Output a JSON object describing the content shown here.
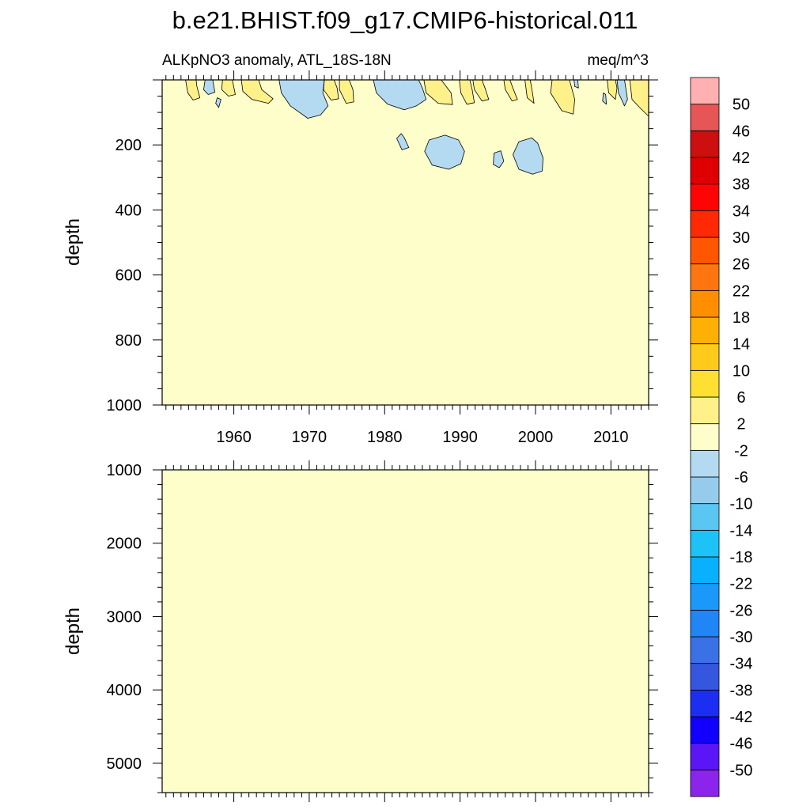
{
  "chart_data": {
    "type": "heatmap",
    "title": "b.e21.BHIST.f09_g17.CMIP6-historical.011",
    "subtitle_left": "ALKpNO3 anomaly, ATL_18S-18N",
    "subtitle_right": "meq/m^3",
    "panels": [
      {
        "id": "upper",
        "ylabel": "depth",
        "ylim": [
          0,
          1000
        ],
        "yticks": [
          "200",
          "400",
          "600",
          "800",
          "1000"
        ],
        "xlim": [
          1950.5,
          2015
        ],
        "xticks": [
          "1960",
          "1970",
          "1980",
          "1990",
          "2000",
          "2010"
        ],
        "background_level": "-2 to 2",
        "positive_regions": [
          {
            "label": "2 to 6",
            "points": [
              [
                1953.6,
                0
              ],
              [
                1953.9,
                40
              ],
              [
                1954.6,
                62
              ],
              [
                1955.5,
                55
              ],
              [
                1955.1,
                20
              ],
              [
                1955.0,
                0
              ]
            ]
          },
          {
            "label": "2 to 6",
            "points": [
              [
                1958.5,
                0
              ],
              [
                1958.4,
                30
              ],
              [
                1959.3,
                50
              ],
              [
                1960.2,
                45
              ],
              [
                1959.8,
                0
              ]
            ]
          },
          {
            "label": "2 to 6",
            "points": [
              [
                1961.0,
                0
              ],
              [
                1961.2,
                35
              ],
              [
                1962.4,
                60
              ],
              [
                1964.6,
                72
              ],
              [
                1965.2,
                58
              ],
              [
                1963.7,
                30
              ],
              [
                1963.3,
                0
              ]
            ]
          },
          {
            "label": "2 to 6",
            "points": [
              [
                1966.2,
                0
              ],
              [
                1966.3,
                35
              ],
              [
                1967.4,
                62
              ],
              [
                1968.6,
                58
              ],
              [
                1968.2,
                25
              ],
              [
                1967.7,
                0
              ]
            ]
          },
          {
            "label": "2 to 6",
            "points": [
              [
                1972.0,
                0
              ],
              [
                1971.9,
                30
              ],
              [
                1972.9,
                62
              ],
              [
                1973.9,
                58
              ],
              [
                1973.7,
                25
              ],
              [
                1973.3,
                0
              ]
            ]
          },
          {
            "label": "2 to 6",
            "points": [
              [
                1974.0,
                0
              ],
              [
                1974.0,
                30
              ],
              [
                1974.9,
                72
              ],
              [
                1975.9,
                68
              ],
              [
                1975.8,
                30
              ],
              [
                1975.3,
                0
              ]
            ]
          },
          {
            "label": "2 to 6",
            "points": [
              [
                1985.2,
                0
              ],
              [
                1985.5,
                40
              ],
              [
                1987.1,
                72
              ],
              [
                1989.0,
                76
              ],
              [
                1988.8,
                40
              ],
              [
                1987.5,
                0
              ]
            ]
          },
          {
            "label": "2 to 6",
            "points": [
              [
                1989.9,
                0
              ],
              [
                1990.1,
                40
              ],
              [
                1990.9,
                75
              ],
              [
                1991.9,
                70
              ],
              [
                1991.6,
                30
              ],
              [
                1991.3,
                0
              ]
            ]
          },
          {
            "label": "2 to 6",
            "points": [
              [
                1991.7,
                0
              ],
              [
                1991.9,
                30
              ],
              [
                1992.9,
                65
              ],
              [
                1993.8,
                60
              ],
              [
                1993.3,
                25
              ],
              [
                1992.9,
                0
              ]
            ]
          },
          {
            "label": "2 to 6",
            "points": [
              [
                1995.8,
                0
              ],
              [
                1996.0,
                30
              ],
              [
                1996.9,
                65
              ],
              [
                1997.6,
                60
              ],
              [
                1997.0,
                25
              ],
              [
                1996.6,
                0
              ]
            ]
          },
          {
            "label": "2 to 6",
            "points": [
              [
                1998.6,
                0
              ],
              [
                1998.9,
                55
              ],
              [
                1999.8,
                72
              ],
              [
                1999.6,
                40
              ],
              [
                1999.3,
                0
              ]
            ]
          },
          {
            "label": "2 to 6",
            "points": [
              [
                2002.2,
                0
              ],
              [
                2002.0,
                40
              ],
              [
                2003.5,
                95
              ],
              [
                2005.0,
                105
              ],
              [
                2005.2,
                60
              ],
              [
                2004.5,
                0
              ]
            ]
          },
          {
            "label": "2 to 6",
            "points": [
              [
                2009.5,
                0
              ],
              [
                2009.7,
                40
              ],
              [
                2010.6,
                60
              ],
              [
                2010.8,
                25
              ],
              [
                2010.6,
                0
              ]
            ]
          },
          {
            "label": "2 to 6",
            "points": [
              [
                2012.5,
                0
              ],
              [
                2012.8,
                60
              ],
              [
                2013.8,
                85
              ],
              [
                2015.0,
                112
              ],
              [
                2015.0,
                0
              ]
            ]
          }
        ],
        "negative_regions": [
          {
            "label": "-6 to -2",
            "points": [
              [
                1956.2,
                0
              ],
              [
                1956.0,
                30
              ],
              [
                1956.6,
                45
              ],
              [
                1957.5,
                38
              ],
              [
                1957.2,
                0
              ]
            ]
          },
          {
            "label": "-6 to -2",
            "points": [
              [
                1957.8,
                55
              ],
              [
                1957.6,
                72
              ],
              [
                1958.0,
                85
              ],
              [
                1958.3,
                60
              ]
            ]
          },
          {
            "label": "-6 to -2",
            "points": [
              [
                1966.0,
                0
              ],
              [
                1966.3,
                40
              ],
              [
                1967.5,
                80
              ],
              [
                1969.8,
                118
              ],
              [
                1971.5,
                108
              ],
              [
                1972.5,
                80
              ],
              [
                1971.8,
                40
              ],
              [
                1972.0,
                0
              ]
            ]
          },
          {
            "label": "-6 to -2",
            "points": [
              [
                1978.5,
                0
              ],
              [
                1978.9,
                40
              ],
              [
                1980.4,
                75
              ],
              [
                1982.6,
                92
              ],
              [
                1984.2,
                80
              ],
              [
                1985.5,
                60
              ],
              [
                1985.0,
                25
              ],
              [
                1984.5,
                0
              ]
            ]
          },
          {
            "label": "-6 to -2",
            "points": [
              [
                1982.2,
                165
              ],
              [
                1981.6,
                180
              ],
              [
                1982.3,
                215
              ],
              [
                1983.2,
                208
              ],
              [
                1982.6,
                178
              ]
            ]
          },
          {
            "label": "-6 to -2",
            "points": [
              [
                1985.9,
                185
              ],
              [
                1985.3,
                220
              ],
              [
                1986.3,
                262
              ],
              [
                1988.5,
                275
              ],
              [
                1990.1,
                258
              ],
              [
                1990.6,
                220
              ],
              [
                1989.8,
                185
              ],
              [
                1988.0,
                170
              ]
            ]
          },
          {
            "label": "-6 to -2",
            "points": [
              [
                1994.5,
                225
              ],
              [
                1994.4,
                260
              ],
              [
                1995.2,
                270
              ],
              [
                1995.8,
                250
              ],
              [
                1995.4,
                218
              ]
            ]
          },
          {
            "label": "-6 to -2",
            "points": [
              [
                1997.8,
                190
              ],
              [
                1997.0,
                230
              ],
              [
                1997.8,
                275
              ],
              [
                1999.6,
                290
              ],
              [
                2000.9,
                280
              ],
              [
                2001.0,
                240
              ],
              [
                2000.3,
                195
              ],
              [
                1999.5,
                178
              ]
            ]
          },
          {
            "label": "-6 to -2",
            "points": [
              [
                2005.1,
                0
              ],
              [
                2005.2,
                20
              ],
              [
                2005.7,
                25
              ],
              [
                2005.6,
                0
              ]
            ]
          },
          {
            "label": "-6 to -2",
            "points": [
              [
                2009.0,
                40
              ],
              [
                2008.9,
                65
              ],
              [
                2009.4,
                75
              ],
              [
                2009.3,
                45
              ]
            ]
          },
          {
            "label": "-6 to -2",
            "points": [
              [
                2010.8,
                0
              ],
              [
                2011.0,
                40
              ],
              [
                2011.8,
                80
              ],
              [
                2012.2,
                60
              ],
              [
                2011.8,
                0
              ]
            ]
          }
        ]
      },
      {
        "id": "lower",
        "ylabel": "depth",
        "ylim": [
          1000,
          5400
        ],
        "yticks": [
          "1000",
          "2000",
          "3000",
          "4000",
          "5000"
        ],
        "xlim": [
          1950.5,
          2015
        ],
        "background_level": "-2 to 2",
        "positive_regions": [],
        "negative_regions": []
      }
    ],
    "colorbar": {
      "colors": [
        "#8b25eb",
        "#5a16f6",
        "#1000fc",
        "#1c2ef2",
        "#3557e0",
        "#3a72e6",
        "#2085f5",
        "#1b99fb",
        "#08b0fd",
        "#1dc3f6",
        "#5ac6f2",
        "#95ccec",
        "#b4daf2",
        "#fefecb",
        "#fff18a",
        "#fee033",
        "#fecb1b",
        "#ffb007",
        "#ff8f00",
        "#ff7610",
        "#ff5602",
        "#ff2a04",
        "#ff0404",
        "#de0000",
        "#cc0f0f",
        "#e65656",
        "#ffb0b0"
      ],
      "labels": [
        "-50",
        "-46",
        "-42",
        "-38",
        "-34",
        "-30",
        "-26",
        "-22",
        "-18",
        "-14",
        "-10",
        "-6",
        "-2",
        "2",
        "6",
        "10",
        "14",
        "18",
        "22",
        "26",
        "30",
        "34",
        "38",
        "42",
        "46",
        "50"
      ]
    },
    "grid": false,
    "legend": "right"
  }
}
